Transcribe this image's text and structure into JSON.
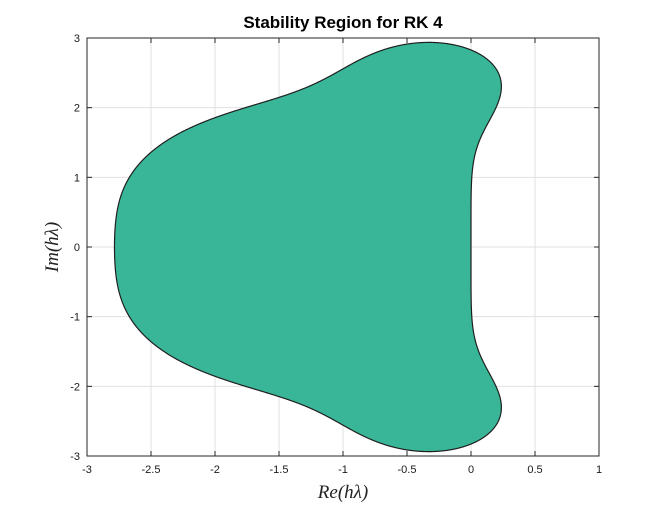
{
  "chart_data": {
    "type": "area",
    "title": "Stability Region for RK 4",
    "xlabel": "Re(hλ)",
    "ylabel": "Im(hλ)",
    "xlim": [
      -3,
      1
    ],
    "ylim": [
      -3,
      3
    ],
    "x_ticks": [
      "-3",
      "-2.5",
      "-2",
      "-1.5",
      "-1",
      "-0.5",
      "0",
      "0.5",
      "1"
    ],
    "y_ticks": [
      "3",
      "2",
      "1",
      "0",
      "-1",
      "-2",
      "-3"
    ],
    "grid": true,
    "legend": "none",
    "fill_color": "#38b697",
    "edge_color": "#1f1f1f",
    "region": "|1 + z + z^2/2 + z^3/6 + z^4/24| <= 1, z = hλ"
  }
}
